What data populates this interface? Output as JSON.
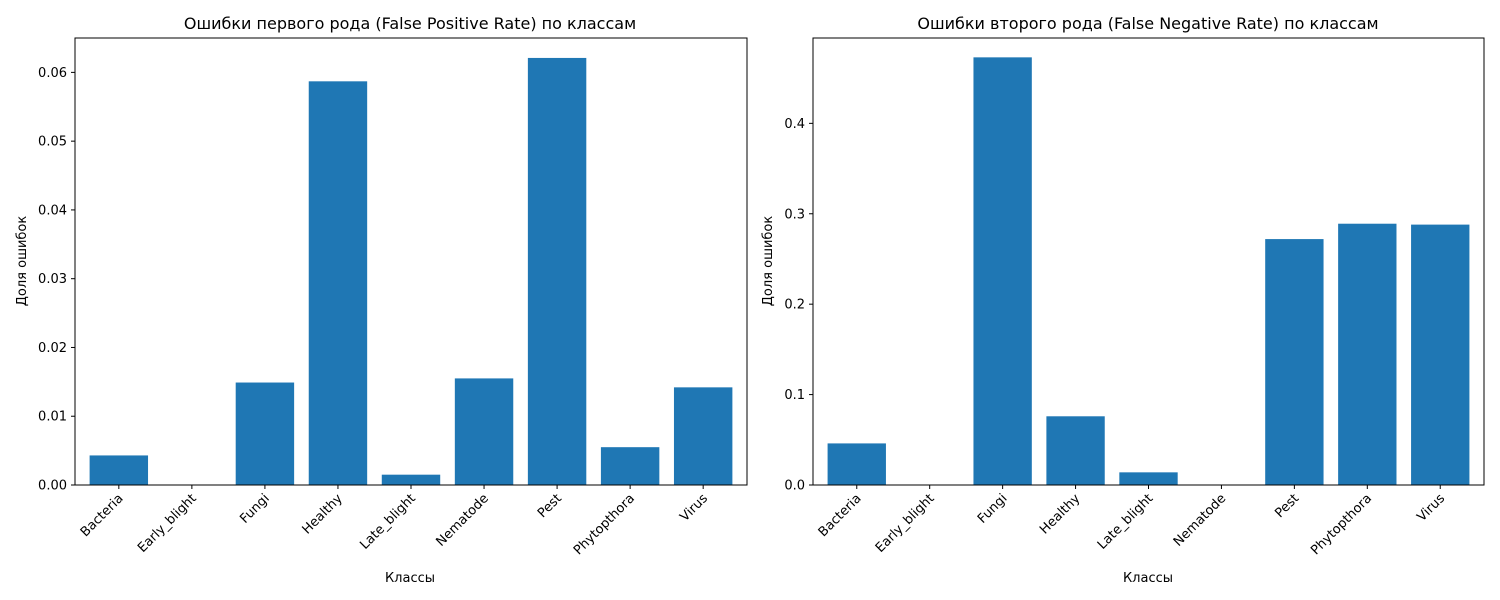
{
  "chart_data": [
    {
      "type": "bar",
      "title": "Ошибки первого рода (False Positive Rate) по классам",
      "xlabel": "Классы",
      "ylabel": "Доля ошибок",
      "categories": [
        "Bacteria",
        "Early_blight",
        "Fungi",
        "Healthy",
        "Late_blight",
        "Nematode",
        "Pest",
        "Phytopthora",
        "Virus"
      ],
      "values": [
        0.0043,
        0.0,
        0.0149,
        0.0587,
        0.0015,
        0.0155,
        0.0621,
        0.0055,
        0.0142
      ],
      "ylim": [
        0,
        0.065
      ],
      "yticks": [
        "0.00",
        "0.01",
        "0.02",
        "0.03",
        "0.04",
        "0.05",
        "0.06"
      ],
      "bar_color": "#1f77b4",
      "grid": false,
      "legend": "none"
    },
    {
      "type": "bar",
      "title": "Ошибки второго рода (False Negative Rate) по классам",
      "xlabel": "Классы",
      "ylabel": "Доля ошибок",
      "categories": [
        "Bacteria",
        "Early_blight",
        "Fungi",
        "Healthy",
        "Late_blight",
        "Nematode",
        "Pest",
        "Phytopthora",
        "Virus"
      ],
      "values": [
        0.046,
        0.0,
        0.473,
        0.076,
        0.014,
        0.0,
        0.272,
        0.289,
        0.288
      ],
      "ylim": [
        0,
        0.4944
      ],
      "yticks": [
        "0.0",
        "0.1",
        "0.2",
        "0.3",
        "0.4"
      ],
      "bar_color": "#1f77b4",
      "grid": false,
      "legend": "none"
    }
  ]
}
